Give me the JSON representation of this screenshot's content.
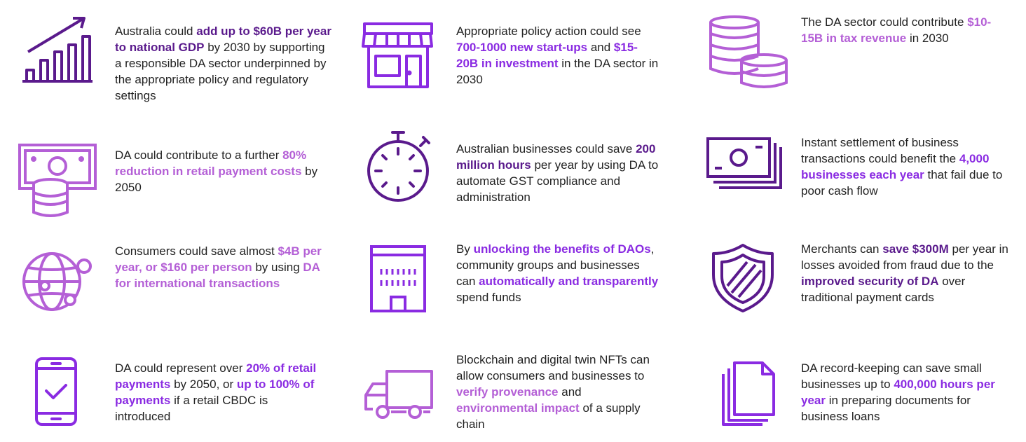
{
  "colors": {
    "dark_purple": "#5a1a8c",
    "violet": "#8a2be2",
    "light_purple": "#b45fd6",
    "text": "#222222"
  },
  "items": [
    {
      "icon": "growth-chart-icon",
      "segments": [
        {
          "t": "Australia could ",
          "s": ""
        },
        {
          "t": "add up to $60B per year to national GDP",
          "s": "dark"
        },
        {
          "t": " by 2030 by supporting a responsible DA sector underpinned by the appropriate policy and regulatory settings",
          "s": ""
        }
      ]
    },
    {
      "icon": "storefront-icon",
      "segments": [
        {
          "t": "Appropriate policy action could see ",
          "s": ""
        },
        {
          "t": "700-1000 new start-ups",
          "s": "violet"
        },
        {
          "t": " and ",
          "s": ""
        },
        {
          "t": "$15-20B in investment",
          "s": "violet"
        },
        {
          "t": " in the DA sector in 2030",
          "s": ""
        }
      ]
    },
    {
      "icon": "coin-stack-icon",
      "segments": [
        {
          "t": "The DA sector could contribute ",
          "s": ""
        },
        {
          "t": "$10-15B in tax revenue",
          "s": "light"
        },
        {
          "t": " in 2030",
          "s": ""
        }
      ]
    },
    {
      "icon": "banknote-coins-icon",
      "segments": [
        {
          "t": "DA could contribute to a further ",
          "s": ""
        },
        {
          "t": "80% reduction in retail payment costs",
          "s": "light"
        },
        {
          "t": " by 2050",
          "s": ""
        }
      ]
    },
    {
      "icon": "stopwatch-icon",
      "segments": [
        {
          "t": "Australian businesses could save ",
          "s": ""
        },
        {
          "t": "200 million hours",
          "s": "dark"
        },
        {
          "t": " per year by using DA to automate GST compliance and administration",
          "s": ""
        }
      ]
    },
    {
      "icon": "banknotes-stack-icon",
      "segments": [
        {
          "t": "Instant settlement of business transactions could benefit the ",
          "s": ""
        },
        {
          "t": "4,000 businesses each year",
          "s": "violet"
        },
        {
          "t": " that fail due to poor cash flow",
          "s": ""
        }
      ]
    },
    {
      "icon": "globe-network-icon",
      "segments": [
        {
          "t": "Consumers could save almost ",
          "s": ""
        },
        {
          "t": "$4B per year, or $160 per person",
          "s": "light"
        },
        {
          "t": " by using ",
          "s": ""
        },
        {
          "t": "DA for international transactions",
          "s": "light"
        }
      ]
    },
    {
      "icon": "building-icon",
      "segments": [
        {
          "t": "By ",
          "s": ""
        },
        {
          "t": "unlocking the benefits of DAOs",
          "s": "violet"
        },
        {
          "t": ", community groups and businesses can ",
          "s": ""
        },
        {
          "t": "automatically and transparently",
          "s": "violet"
        },
        {
          "t": " spend funds",
          "s": ""
        }
      ]
    },
    {
      "icon": "shield-icon",
      "segments": [
        {
          "t": "Merchants can ",
          "s": ""
        },
        {
          "t": "save $300M",
          "s": "dark"
        },
        {
          "t": " per year in losses avoided from fraud due to the ",
          "s": ""
        },
        {
          "t": "improved security of DA",
          "s": "dark"
        },
        {
          "t": " over traditional payment cards",
          "s": ""
        }
      ]
    },
    {
      "icon": "smartphone-check-icon",
      "segments": [
        {
          "t": "DA could represent over ",
          "s": ""
        },
        {
          "t": "20% of retail payments",
          "s": "violet"
        },
        {
          "t": " by 2050, or ",
          "s": ""
        },
        {
          "t": "up to 100% of payments",
          "s": "violet"
        },
        {
          "t": " if a retail CBDC is introduced",
          "s": ""
        }
      ]
    },
    {
      "icon": "delivery-truck-icon",
      "segments": [
        {
          "t": "Blockchain and digital twin NFTs can allow consumers and businesses to ",
          "s": ""
        },
        {
          "t": "verify provenance",
          "s": "light"
        },
        {
          "t": " and ",
          "s": ""
        },
        {
          "t": "environmental impact",
          "s": "light"
        },
        {
          "t": " of a supply chain",
          "s": ""
        }
      ]
    },
    {
      "icon": "documents-icon",
      "segments": [
        {
          "t": "DA record-keeping can save small businesses up to ",
          "s": ""
        },
        {
          "t": "400,000 hours per year",
          "s": "violet"
        },
        {
          "t": " in preparing documents for business loans",
          "s": ""
        }
      ]
    }
  ]
}
